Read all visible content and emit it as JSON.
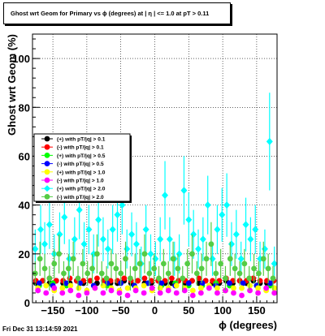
{
  "title": "Ghost wrt Geom for Primary vs ϕ (degrees) at |  η | <= 1.0 at pT > 0.11",
  "timestamp": "Fri Dec 31 13:14:59 2021",
  "chart_data": {
    "type": "scatter",
    "title": "Ghost wrt Geom for Primary vs ϕ (degrees) at |  η | <= 1.0 at pT > 0.11",
    "xlabel": "ϕ (degrees)",
    "ylabel": "Ghost wrt Geom (%)",
    "xlim": [
      -180,
      180
    ],
    "ylim": [
      0,
      110
    ],
    "xticks": [
      -150,
      -100,
      -50,
      0,
      50,
      100,
      150
    ],
    "yticks": [
      0,
      20,
      40,
      60,
      80,
      100
    ],
    "grid": true,
    "legend_position": "middle-left",
    "series": [
      {
        "name": "(+) with pT/|q| > 0.1",
        "color": "#000000",
        "marker": "circle",
        "x": [
          -175,
          -165,
          -155,
          -145,
          -135,
          -125,
          -115,
          -105,
          -95,
          -85,
          -75,
          -65,
          -55,
          -45,
          -35,
          -25,
          -15,
          -5,
          5,
          15,
          25,
          35,
          45,
          55,
          65,
          75,
          85,
          95,
          105,
          115,
          125,
          135,
          145,
          155,
          165,
          175
        ],
        "y": [
          8,
          9,
          8,
          9,
          8,
          8,
          9,
          8,
          9,
          8,
          9,
          8,
          8,
          9,
          8,
          9,
          8,
          8,
          9,
          8,
          8,
          9,
          8,
          9,
          8,
          9,
          8,
          8,
          9,
          8,
          9,
          8,
          9,
          8,
          8,
          9
        ]
      },
      {
        "name": "(-) with pT/|q| > 0.1",
        "color": "#ff0000",
        "marker": "circle",
        "x": [
          -175,
          -165,
          -155,
          -145,
          -135,
          -125,
          -115,
          -105,
          -95,
          -85,
          -75,
          -65,
          -55,
          -45,
          -35,
          -25,
          -15,
          -5,
          5,
          15,
          25,
          35,
          45,
          55,
          65,
          75,
          85,
          95,
          105,
          115,
          125,
          135,
          145,
          155,
          165,
          175
        ],
        "y": [
          9,
          9,
          10,
          9,
          9,
          10,
          9,
          9,
          9,
          10,
          9,
          9,
          9,
          10,
          9,
          9,
          10,
          9,
          9,
          9,
          10,
          9,
          9,
          9,
          10,
          9,
          9,
          9,
          10,
          9,
          9,
          9,
          10,
          9,
          9,
          9
        ]
      },
      {
        "name": "(+) with pT/|q| > 0.5",
        "color": "#00ff00",
        "marker": "circle",
        "x": [
          -170,
          -150,
          -130,
          -110,
          -90,
          -70,
          -50,
          -30,
          -10,
          10,
          30,
          50,
          70,
          90,
          110,
          130,
          150,
          170
        ],
        "y": [
          7,
          8,
          7,
          8,
          7,
          7,
          8,
          7,
          8,
          7,
          8,
          7,
          7,
          8,
          7,
          8,
          7,
          7
        ]
      },
      {
        "name": "(-) with pT/|q| > 0.5",
        "color": "#0000ff",
        "marker": "circle",
        "x": [
          -170,
          -150,
          -130,
          -110,
          -90,
          -70,
          -50,
          -30,
          -10,
          10,
          30,
          50,
          70,
          90,
          110,
          130,
          150,
          170
        ],
        "y": [
          8,
          7,
          8,
          8,
          7,
          8,
          8,
          7,
          8,
          8,
          7,
          8,
          8,
          7,
          8,
          8,
          7,
          8
        ]
      },
      {
        "name": "(+) with pT/|q| > 1.0",
        "color": "#ffff00",
        "marker": "circle",
        "x": [
          -172,
          -160,
          -148,
          -136,
          -124,
          -112,
          -100,
          -88,
          -76,
          -64,
          -52,
          -40,
          -28,
          -16,
          -4,
          8,
          20,
          32,
          44,
          56,
          68,
          80,
          92,
          104,
          116,
          128,
          140,
          152,
          164,
          176
        ],
        "y": [
          6,
          7,
          5,
          6,
          7,
          6,
          5,
          6,
          7,
          6,
          5,
          6,
          6,
          7,
          5,
          6,
          6,
          7,
          6,
          5,
          6,
          7,
          6,
          5,
          6,
          6,
          7,
          6,
          5,
          6
        ]
      },
      {
        "name": "(-) with pT/|q| > 1.0",
        "color": "#ff00ff",
        "marker": "circle",
        "x": [
          -172,
          -160,
          -148,
          -136,
          -124,
          -112,
          -100,
          -88,
          -76,
          -64,
          -52,
          -40,
          -28,
          -16,
          -4,
          8,
          20,
          32,
          44,
          56,
          68,
          80,
          92,
          104,
          116,
          128,
          140,
          152,
          164,
          176
        ],
        "y": [
          5,
          4,
          6,
          4,
          5,
          3,
          4,
          6,
          4,
          5,
          4,
          3,
          5,
          4,
          6,
          4,
          5,
          4,
          5,
          3,
          4,
          6,
          4,
          5,
          4,
          3,
          5,
          4,
          6,
          4
        ]
      },
      {
        "name": "(+) with pT/|q| > 2.0",
        "color": "#00ffff",
        "marker": "diamond",
        "x": [
          -176,
          -168,
          -162,
          -155,
          -148,
          -140,
          -133,
          -126,
          -118,
          -111,
          -104,
          -97,
          -90,
          -83,
          -76,
          -69,
          -62,
          -55,
          -48,
          -41,
          -34,
          -27,
          -20,
          -13,
          -6,
          1,
          8,
          15,
          22,
          29,
          36,
          43,
          50,
          57,
          64,
          71,
          78,
          85,
          92,
          99,
          106,
          113,
          120,
          127,
          134,
          141,
          148,
          155,
          162,
          169,
          176
        ],
        "y": [
          22,
          30,
          24,
          32,
          20,
          28,
          35,
          18,
          26,
          38,
          24,
          30,
          20,
          34,
          26,
          22,
          30,
          36,
          40,
          22,
          28,
          24,
          16,
          30,
          20,
          18,
          26,
          44,
          26,
          18,
          20,
          46,
          34,
          28,
          22,
          26,
          40,
          18,
          30,
          36,
          40,
          24,
          28,
          18,
          32,
          26,
          30,
          18,
          22,
          66,
          16
        ],
        "yerr": [
          8,
          10,
          9,
          10,
          8,
          9,
          11,
          8,
          9,
          12,
          9,
          10,
          8,
          11,
          9,
          8,
          10,
          11,
          12,
          8,
          9,
          9,
          7,
          10,
          8,
          7,
          9,
          14,
          9,
          7,
          8,
          14,
          11,
          10,
          8,
          9,
          12,
          7,
          10,
          11,
          13,
          9,
          10,
          7,
          11,
          9,
          10,
          7,
          8,
          20,
          7
        ]
      },
      {
        "name": "(-) with pT/|q| > 2.0",
        "color": "#55cc44",
        "marker": "circle",
        "x": [
          -176,
          -169,
          -162,
          -155,
          -148,
          -141,
          -134,
          -127,
          -120,
          -113,
          -106,
          -99,
          -92,
          -85,
          -78,
          -71,
          -64,
          -57,
          -50,
          -43,
          -36,
          -29,
          -22,
          -15,
          -8,
          -1,
          6,
          13,
          20,
          27,
          34,
          41,
          48,
          55,
          62,
          69,
          76,
          83,
          90,
          97,
          104,
          111,
          118,
          125,
          132,
          139,
          146,
          153,
          160,
          167,
          174
        ],
        "y": [
          12,
          18,
          14,
          10,
          16,
          20,
          12,
          14,
          18,
          10,
          16,
          12,
          14,
          20,
          12,
          10,
          16,
          14,
          12,
          18,
          10,
          14,
          16,
          20,
          12,
          14,
          10,
          16,
          12,
          18,
          14,
          10,
          16,
          20,
          12,
          14,
          18,
          24,
          12,
          16,
          10,
          18,
          14,
          12,
          16,
          10,
          14,
          12,
          18,
          14,
          10
        ],
        "yerr": [
          5,
          7,
          6,
          5,
          6,
          8,
          5,
          6,
          7,
          5,
          6,
          5,
          6,
          8,
          5,
          5,
          6,
          6,
          5,
          7,
          5,
          6,
          6,
          8,
          5,
          6,
          5,
          6,
          5,
          7,
          6,
          5,
          6,
          8,
          5,
          6,
          7,
          9,
          5,
          6,
          5,
          7,
          6,
          5,
          6,
          5,
          6,
          5,
          7,
          6,
          5
        ]
      }
    ]
  }
}
